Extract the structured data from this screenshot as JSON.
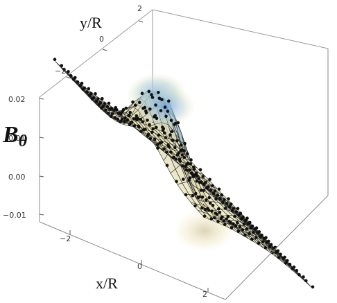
{
  "chart_data": {
    "type": "surface3d",
    "xlabel": "x/R",
    "ylabel": "y/R",
    "zlabel": "B",
    "zlabel_subscript": "θ",
    "x_ticks": [
      "−2",
      "0",
      "2"
    ],
    "x_tick_values": [
      -2,
      0,
      2
    ],
    "y_ticks": [
      "−2",
      "0",
      "2"
    ],
    "y_tick_values": [
      -2,
      0,
      2
    ],
    "z_ticks": [
      "0.02",
      "0.01",
      "0.00",
      "−0.01"
    ],
    "z_tick_values": [
      0.02,
      0.01,
      0.0,
      -0.01
    ],
    "xlim": [
      -3,
      3
    ],
    "ylim": [
      -3,
      3
    ],
    "zlim": [
      -0.012,
      0.022
    ],
    "mesh_lines": true,
    "points_overlay": true,
    "surface_colors": [
      "#f6edb4",
      "#f3e2a8",
      "#b9d3cf",
      "#8fb8dc"
    ],
    "point_color": "#111111",
    "features": [
      {
        "x": -0.8,
        "y": 0.4,
        "z": 0.016,
        "kind": "peak"
      },
      {
        "x": 0.7,
        "y": 2.0,
        "z": 0.018,
        "kind": "peak"
      },
      {
        "x": 1.2,
        "y": 0.5,
        "z": -0.006,
        "kind": "trough"
      }
    ]
  }
}
